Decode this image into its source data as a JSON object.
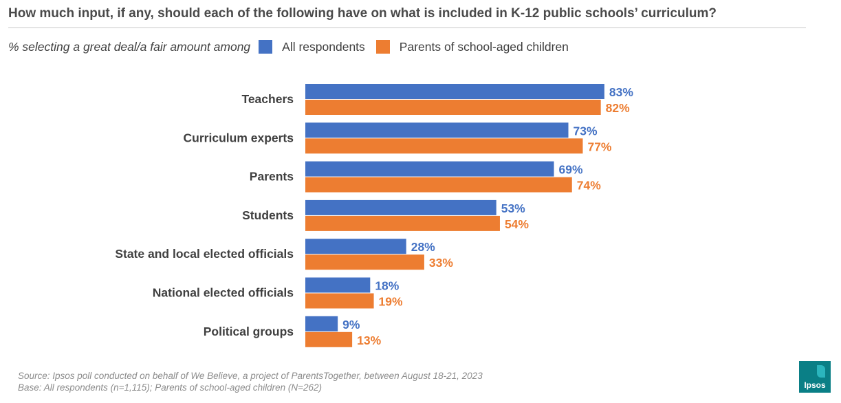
{
  "title": "How much input, if any, should each of the following  have on what is included in K-12 public schools’ curriculum?",
  "legend": {
    "lead": "% selecting a great deal/a fair amount among",
    "items": [
      {
        "label": "All respondents",
        "color": "#4472c4"
      },
      {
        "label": "Parents of school-aged children",
        "color": "#ed7d31"
      }
    ]
  },
  "chart_data": {
    "type": "bar",
    "orientation": "horizontal",
    "categories": [
      "Teachers",
      "Curriculum experts",
      "Parents",
      "Students",
      "State and local elected officials",
      "National elected officials",
      "Political groups"
    ],
    "series": [
      {
        "name": "All respondents",
        "color": "#4472c4",
        "values": [
          83,
          73,
          69,
          53,
          28,
          18,
          9
        ],
        "labels": [
          "83%",
          "73%",
          "69%",
          "53%",
          "28%",
          "18%",
          "9%"
        ]
      },
      {
        "name": "Parents of school-aged children",
        "color": "#ed7d31",
        "values": [
          82,
          77,
          74,
          54,
          33,
          19,
          13
        ],
        "labels": [
          "82%",
          "77%",
          "74%",
          "54%",
          "33%",
          "19%",
          "13%"
        ]
      }
    ],
    "xlim": [
      0,
      100
    ],
    "grid": false,
    "legend_position": "top-left"
  },
  "source": {
    "line1": "Source: Ipsos poll conducted on behalf of We Believe, a project of ParentsTogether, between  August 18-21, 2023",
    "line2": "Base: All respondents (n=1,115); Parents of school-aged children (N=262)"
  },
  "logo": {
    "text": "Ipsos",
    "color": "#0a7f86"
  }
}
